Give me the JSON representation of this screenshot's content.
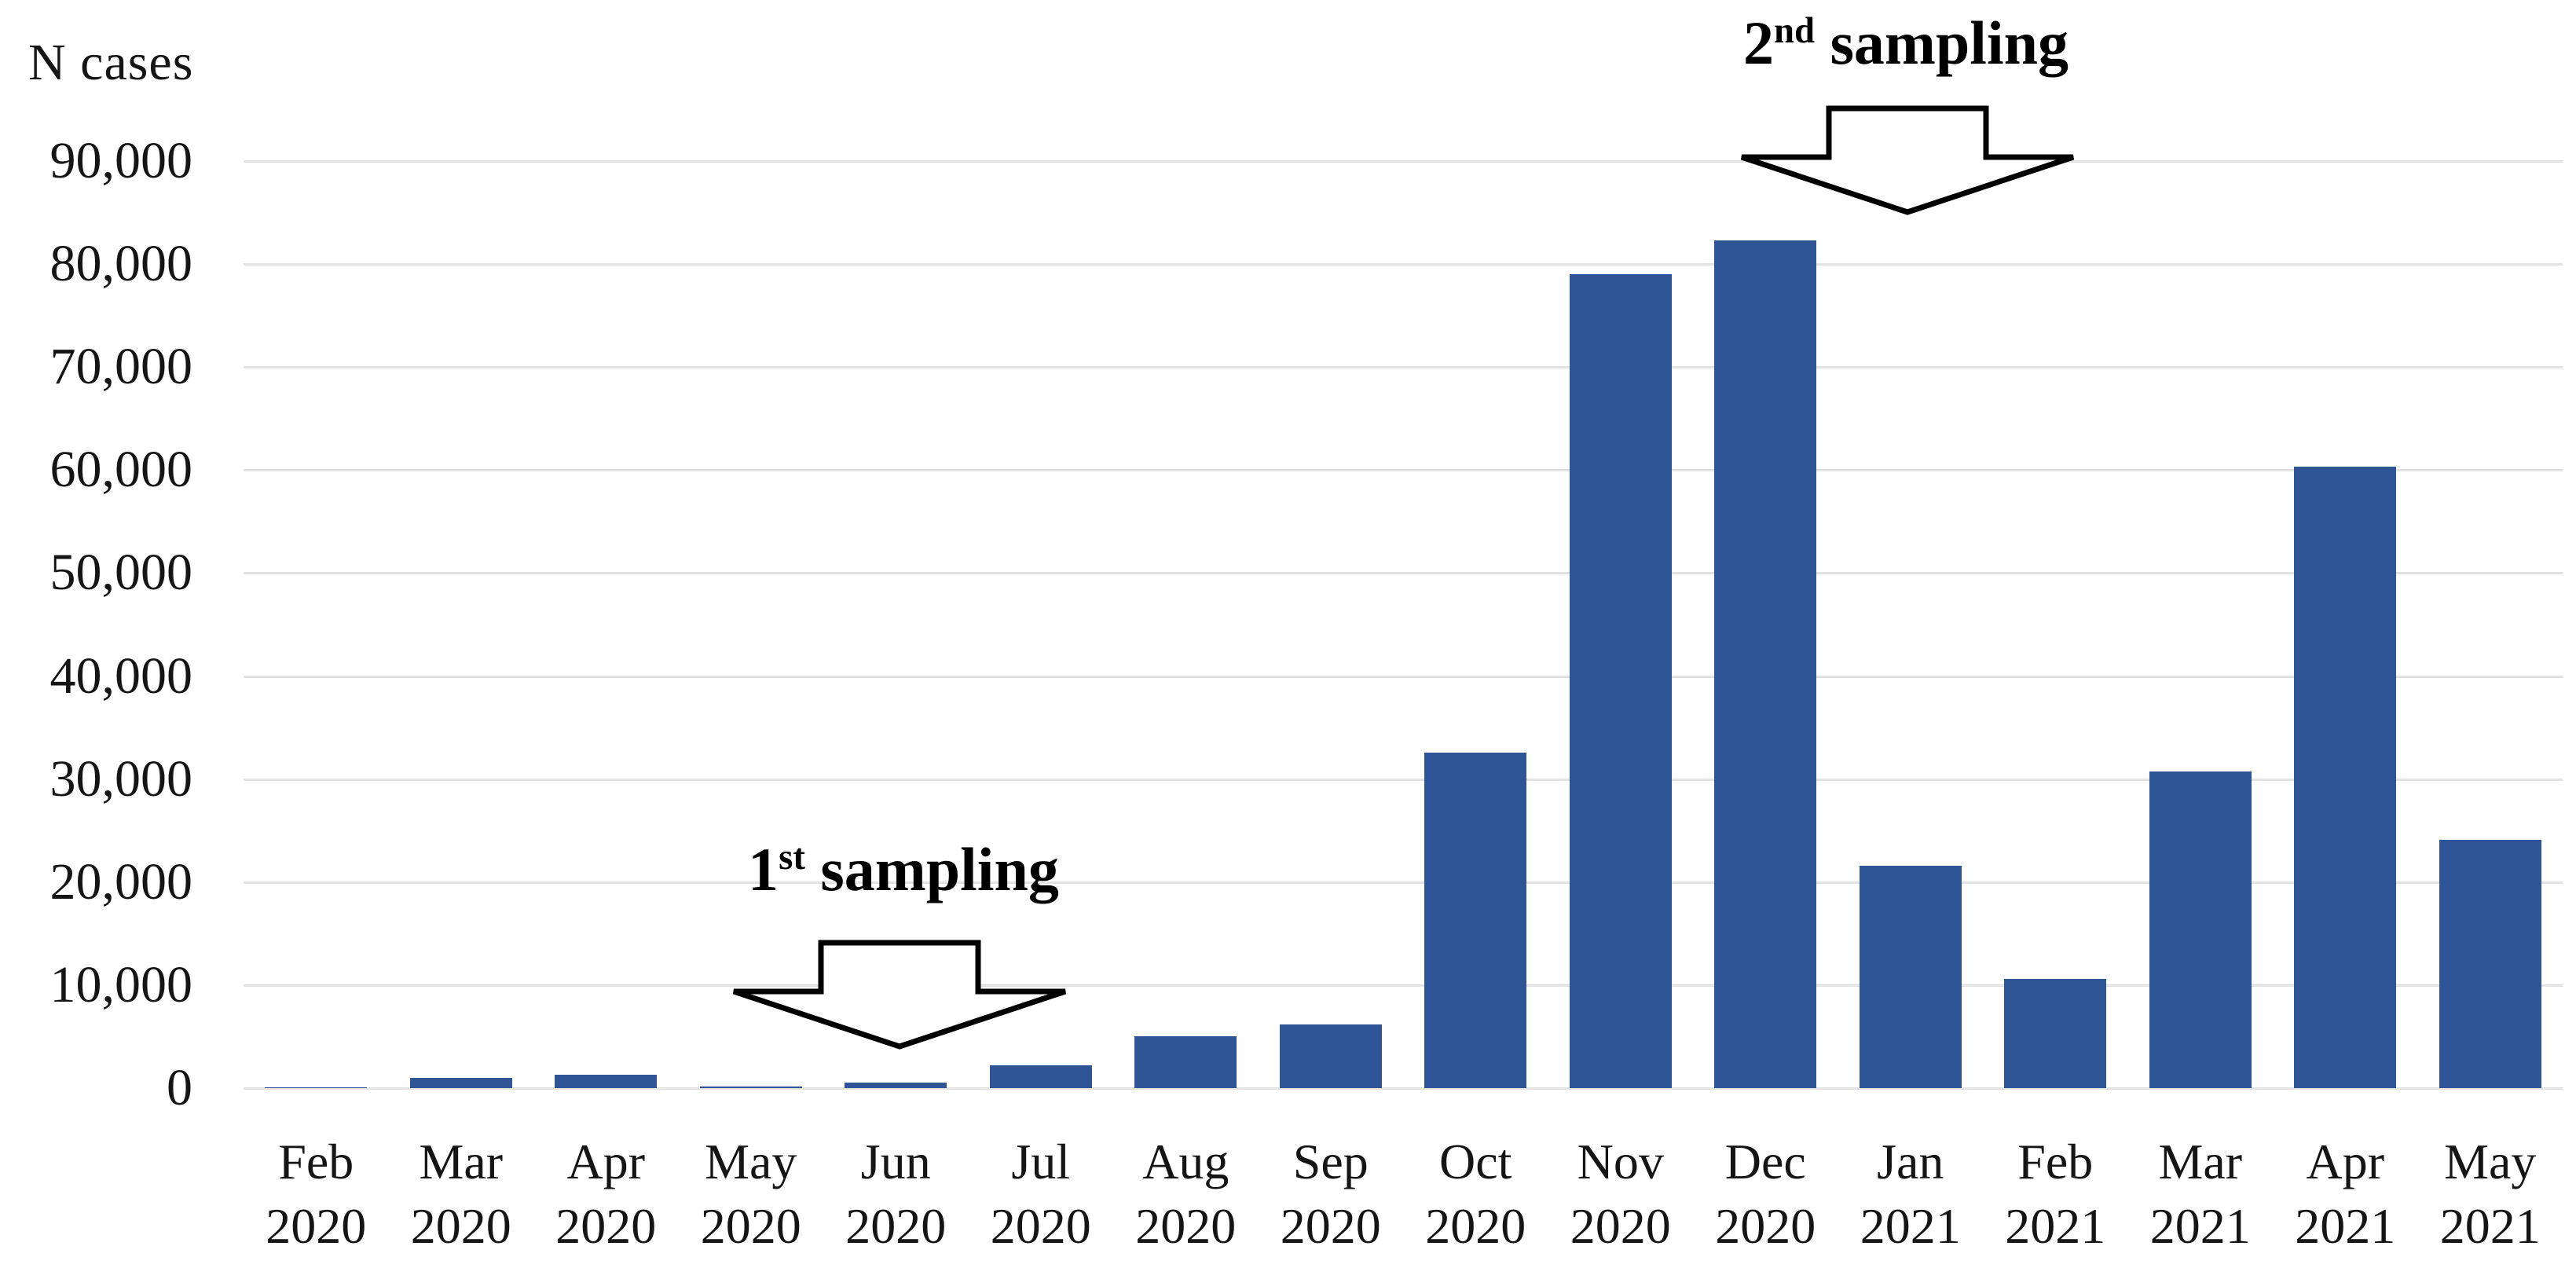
{
  "figure": {
    "y_axis_title": "N cases"
  },
  "annotations": {
    "first": {
      "prefix": "1",
      "sup": "st",
      "rest": " sampling"
    },
    "second": {
      "prefix": "2",
      "sup": "nd",
      "rest": " sampling"
    }
  },
  "chart_data": {
    "type": "bar",
    "title": "",
    "xlabel": "",
    "ylabel": "N cases",
    "ylim": [
      0,
      90000
    ],
    "ytick_step": 10000,
    "grid": true,
    "legend": "none",
    "bar_color": "#2F5597",
    "gridline_color": "#e2e2e2",
    "categories": [
      "Feb 2020",
      "Mar 2020",
      "Apr 2020",
      "May 2020",
      "Jun 2020",
      "Jul 2020",
      "Aug 2020",
      "Sep 2020",
      "Oct 2020",
      "Nov 2020",
      "Dec 2020",
      "Jan 2021",
      "Feb 2021",
      "Mar 2021",
      "Apr 2021",
      "May 2021"
    ],
    "values": [
      100,
      1000,
      1300,
      150,
      550,
      2200,
      5000,
      6200,
      32600,
      79000,
      82300,
      21600,
      10600,
      30700,
      60300,
      24100
    ],
    "annotations": [
      {
        "label": "1st sampling",
        "points_at": "Jun 2020"
      },
      {
        "label": "2nd sampling",
        "points_at": "Jan 2021"
      }
    ]
  }
}
